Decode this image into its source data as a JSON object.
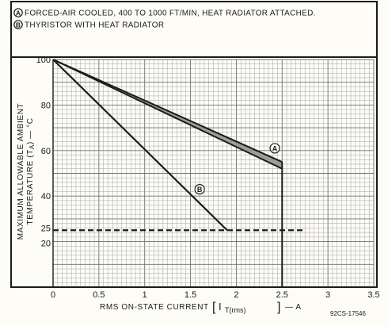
{
  "chart_data": {
    "type": "line",
    "annotations": [
      {
        "marker": "A",
        "text": "FORCED-AIR COOLED, 400 TO 1000 FT/MIN, HEAT RADIATOR ATTACHED."
      },
      {
        "marker": "B",
        "text": "THYRISTOR WITH HEAT RADIATOR"
      }
    ],
    "xlabel_prefix": "RMS ON-STATE CURRENT",
    "xlabel_symbol": "I",
    "xlabel_subscript": "T(rms)",
    "xlabel_suffix": "— A",
    "ylabel_line1": "MAXIMUM ALLOWABLE AMBIENT",
    "ylabel_line2": "TEMPERATURE (T",
    "ylabel_sub": "A",
    "ylabel_line2_end": ") — °C",
    "figure_id": "92CS-17546",
    "xlim": [
      0,
      3.5
    ],
    "ylim": [
      0,
      100
    ],
    "x_ticks": [
      {
        "value": 0,
        "label": "0"
      },
      {
        "value": 0.5,
        "label": "0.5"
      },
      {
        "value": 1,
        "label": "1"
      },
      {
        "value": 1.5,
        "label": "1.5"
      },
      {
        "value": 2,
        "label": "2"
      },
      {
        "value": 2.5,
        "label": "2.5"
      },
      {
        "value": 3,
        "label": "3"
      },
      {
        "value": 3.5,
        "label": "3.5"
      }
    ],
    "y_ticks": [
      {
        "value": 100,
        "label": "100"
      },
      {
        "value": 80,
        "label": "80"
      },
      {
        "value": 60,
        "label": "60"
      },
      {
        "value": 40,
        "label": "40"
      },
      {
        "value": 25,
        "label": "25"
      },
      {
        "value": 20,
        "label": "20"
      }
    ],
    "grid": true,
    "series": [
      {
        "marker": "A",
        "band": true,
        "upper": [
          [
            0,
            100
          ],
          [
            2.5,
            55
          ]
        ],
        "lower": [
          [
            0,
            100
          ],
          [
            2.5,
            52
          ]
        ],
        "drop_x": 2.5
      },
      {
        "marker": "B",
        "points": [
          [
            0,
            100
          ],
          [
            1.9,
            25
          ]
        ]
      }
    ],
    "reference_line": {
      "y": 25,
      "x": [
        0,
        2.75
      ],
      "style": "dashed"
    },
    "label_positions": {
      "A": [
        2.42,
        61
      ],
      "B": [
        1.6,
        43
      ]
    },
    "colors": {
      "paper": "#fdfcf7",
      "grid": "#9a9a9a",
      "ink": "#1b1b1b",
      "band": "#8d8d8d"
    }
  }
}
